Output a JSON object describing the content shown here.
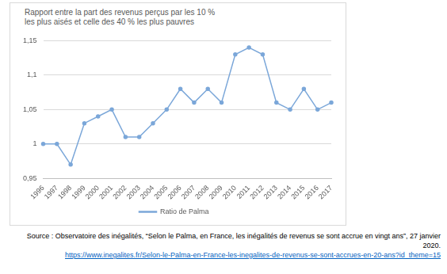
{
  "chart_data": {
    "type": "line",
    "title": "Rapport entre la part des revenus perçus par les 10 % les plus aisés et celle des 40 % les plus pauvres",
    "categories": [
      "1996",
      "1997",
      "1998",
      "1999",
      "2000",
      "2001",
      "2002",
      "2003",
      "2004",
      "2005",
      "2006",
      "2007",
      "2008",
      "2009",
      "2010",
      "2011",
      "2012",
      "2013",
      "2014",
      "2015",
      "2016",
      "2017"
    ],
    "series": [
      {
        "name": "Ratio de Palma",
        "color": "#7ba7d9",
        "marker": "circle",
        "values": [
          1.0,
          1.0,
          0.97,
          1.03,
          1.04,
          1.05,
          1.01,
          1.01,
          1.03,
          1.05,
          1.08,
          1.06,
          1.08,
          1.06,
          1.13,
          1.14,
          1.13,
          1.06,
          1.05,
          1.08,
          1.05,
          1.06
        ]
      }
    ],
    "ylim": [
      0.95,
      1.15
    ],
    "yticks": [
      {
        "value": 0.95,
        "label": "0,95"
      },
      1,
      {
        "value": 1.05,
        "label": "1,05"
      },
      {
        "value": 1.1,
        "label": "1,1"
      },
      {
        "value": 1.15,
        "label": "1,15"
      }
    ],
    "grid": true,
    "legend": "bottom",
    "source": "Source : Observatoire des inégalités, “Selon le Palma, en France, les inégalités de revenus se sont accrue en vingt ans”, 27 janvier 2020.",
    "source_url": "https://www.inegalites.fr/Selon-le-Palma-en-France-les-inegalites-de-revenus-se-sont-accrues-en-20-ans?id_theme=15"
  }
}
